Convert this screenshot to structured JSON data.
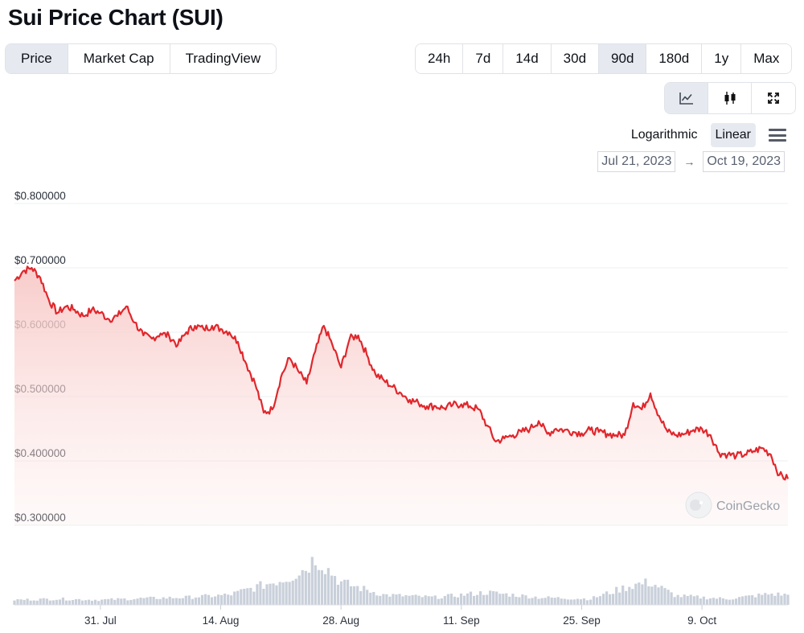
{
  "page_title": "Sui Price Chart (SUI)",
  "view_tabs": [
    {
      "label": "Price",
      "active": true
    },
    {
      "label": "Market Cap",
      "active": false
    },
    {
      "label": "TradingView",
      "active": false
    }
  ],
  "range_tabs": [
    {
      "label": "24h",
      "active": false
    },
    {
      "label": "7d",
      "active": false
    },
    {
      "label": "14d",
      "active": false
    },
    {
      "label": "30d",
      "active": false
    },
    {
      "label": "90d",
      "active": true
    },
    {
      "label": "180d",
      "active": false
    },
    {
      "label": "1y",
      "active": false
    },
    {
      "label": "Max",
      "active": false
    }
  ],
  "chart_types": [
    {
      "icon": "line-chart-icon",
      "active": true
    },
    {
      "icon": "candlestick-icon",
      "active": false
    },
    {
      "icon": "fullscreen-icon",
      "active": false
    }
  ],
  "scale": {
    "logarithmic_label": "Logarithmic",
    "linear_label": "Linear",
    "selected": "Linear"
  },
  "date_range": {
    "from": "Jul 21, 2023",
    "to": "Oct 19, 2023",
    "arrow": "→"
  },
  "watermark": "CoinGecko",
  "colors": {
    "line": "#e0272c",
    "fill_top": "#f9d7d5",
    "volume": "#c9d0da",
    "active_bg": "#e6eaf0"
  },
  "chart_data": {
    "type": "line",
    "title": "Sui Price Chart (SUI)",
    "xlabel": "",
    "ylabel": "",
    "ylim": [
      0.3,
      0.8
    ],
    "y_ticks": [
      0.8,
      0.7,
      0.6,
      0.5,
      0.4,
      0.3
    ],
    "y_tick_labels": [
      "$0.800000",
      "$0.700000",
      "$0.600000",
      "$0.500000",
      "$0.400000",
      "$0.300000"
    ],
    "xlim": [
      "2023-07-21",
      "2023-10-19"
    ],
    "x_ticks": [
      "2023-07-31",
      "2023-08-14",
      "2023-08-28",
      "2023-09-11",
      "2023-09-25",
      "2023-10-09"
    ],
    "x_tick_labels": [
      "31. Jul",
      "14. Aug",
      "28. Aug",
      "11. Sep",
      "25. Sep",
      "9. Oct"
    ],
    "grid": true,
    "legend": "none",
    "series": [
      {
        "values": [
          [
            "2023-07-21",
            0.68
          ],
          [
            "2023-07-22",
            0.695
          ],
          [
            "2023-07-23",
            0.7
          ],
          [
            "2023-07-24",
            0.685
          ],
          [
            "2023-07-25",
            0.65
          ],
          [
            "2023-07-26",
            0.63
          ],
          [
            "2023-07-27",
            0.64
          ],
          [
            "2023-07-28",
            0.635
          ],
          [
            "2023-07-29",
            0.625
          ],
          [
            "2023-07-30",
            0.635
          ],
          [
            "2023-07-31",
            0.63
          ],
          [
            "2023-08-01",
            0.62
          ],
          [
            "2023-08-02",
            0.625
          ],
          [
            "2023-08-03",
            0.64
          ],
          [
            "2023-08-04",
            0.615
          ],
          [
            "2023-08-05",
            0.595
          ],
          [
            "2023-08-06",
            0.59
          ],
          [
            "2023-08-07",
            0.598
          ],
          [
            "2023-08-08",
            0.594
          ],
          [
            "2023-08-09",
            0.58
          ],
          [
            "2023-08-10",
            0.6
          ],
          [
            "2023-08-11",
            0.61
          ],
          [
            "2023-08-12",
            0.605
          ],
          [
            "2023-08-13",
            0.61
          ],
          [
            "2023-08-14",
            0.605
          ],
          [
            "2023-08-15",
            0.6
          ],
          [
            "2023-08-16",
            0.585
          ],
          [
            "2023-08-17",
            0.55
          ],
          [
            "2023-08-18",
            0.52
          ],
          [
            "2023-08-19",
            0.475
          ],
          [
            "2023-08-20",
            0.48
          ],
          [
            "2023-08-21",
            0.53
          ],
          [
            "2023-08-22",
            0.56
          ],
          [
            "2023-08-23",
            0.54
          ],
          [
            "2023-08-24",
            0.52
          ],
          [
            "2023-08-25",
            0.57
          ],
          [
            "2023-08-26",
            0.61
          ],
          [
            "2023-08-27",
            0.58
          ],
          [
            "2023-08-28",
            0.545
          ],
          [
            "2023-08-29",
            0.59
          ],
          [
            "2023-08-30",
            0.595
          ],
          [
            "2023-08-31",
            0.565
          ],
          [
            "2023-09-01",
            0.535
          ],
          [
            "2023-09-02",
            0.525
          ],
          [
            "2023-09-03",
            0.515
          ],
          [
            "2023-09-04",
            0.505
          ],
          [
            "2023-09-05",
            0.495
          ],
          [
            "2023-09-06",
            0.49
          ],
          [
            "2023-09-07",
            0.485
          ],
          [
            "2023-09-08",
            0.485
          ],
          [
            "2023-09-09",
            0.482
          ],
          [
            "2023-09-10",
            0.487
          ],
          [
            "2023-09-11",
            0.488
          ],
          [
            "2023-09-12",
            0.485
          ],
          [
            "2023-09-13",
            0.48
          ],
          [
            "2023-09-14",
            0.455
          ],
          [
            "2023-09-15",
            0.43
          ],
          [
            "2023-09-16",
            0.435
          ],
          [
            "2023-09-17",
            0.44
          ],
          [
            "2023-09-18",
            0.445
          ],
          [
            "2023-09-19",
            0.45
          ],
          [
            "2023-09-20",
            0.462
          ],
          [
            "2023-09-21",
            0.442
          ],
          [
            "2023-09-22",
            0.45
          ],
          [
            "2023-09-23",
            0.448
          ],
          [
            "2023-09-24",
            0.445
          ],
          [
            "2023-09-25",
            0.443
          ],
          [
            "2023-09-26",
            0.448
          ],
          [
            "2023-09-27",
            0.445
          ],
          [
            "2023-09-28",
            0.442
          ],
          [
            "2023-09-29",
            0.44
          ],
          [
            "2023-09-30",
            0.44
          ],
          [
            "2023-10-01",
            0.49
          ],
          [
            "2023-10-02",
            0.48
          ],
          [
            "2023-10-03",
            0.505
          ],
          [
            "2023-10-04",
            0.47
          ],
          [
            "2023-10-05",
            0.445
          ],
          [
            "2023-10-06",
            0.44
          ],
          [
            "2023-10-07",
            0.442
          ],
          [
            "2023-10-08",
            0.448
          ],
          [
            "2023-10-09",
            0.45
          ],
          [
            "2023-10-10",
            0.44
          ],
          [
            "2023-10-11",
            0.412
          ],
          [
            "2023-10-12",
            0.41
          ],
          [
            "2023-10-13",
            0.408
          ],
          [
            "2023-10-14",
            0.41
          ],
          [
            "2023-10-15",
            0.415
          ],
          [
            "2023-10-16",
            0.42
          ],
          [
            "2023-10-17",
            0.41
          ],
          [
            "2023-10-18",
            0.378
          ],
          [
            "2023-10-19",
            0.372
          ]
        ]
      }
    ],
    "volume": [
      [
        "2023-07-21",
        0.1
      ],
      [
        "2023-07-26",
        0.12
      ],
      [
        "2023-07-31",
        0.1
      ],
      [
        "2023-08-05",
        0.13
      ],
      [
        "2023-08-10",
        0.15
      ],
      [
        "2023-08-15",
        0.2
      ],
      [
        "2023-08-18",
        0.35
      ],
      [
        "2023-08-20",
        0.45
      ],
      [
        "2023-08-22",
        0.55
      ],
      [
        "2023-08-24",
        0.75
      ],
      [
        "2023-08-25",
        0.95
      ],
      [
        "2023-08-26",
        0.8
      ],
      [
        "2023-08-28",
        0.45
      ],
      [
        "2023-09-02",
        0.2
      ],
      [
        "2023-09-08",
        0.15
      ],
      [
        "2023-09-14",
        0.25
      ],
      [
        "2023-09-20",
        0.15
      ],
      [
        "2023-09-26",
        0.12
      ],
      [
        "2023-10-01",
        0.4
      ],
      [
        "2023-10-03",
        0.45
      ],
      [
        "2023-10-06",
        0.18
      ],
      [
        "2023-10-12",
        0.12
      ],
      [
        "2023-10-17",
        0.22
      ],
      [
        "2023-10-19",
        0.2
      ]
    ]
  }
}
